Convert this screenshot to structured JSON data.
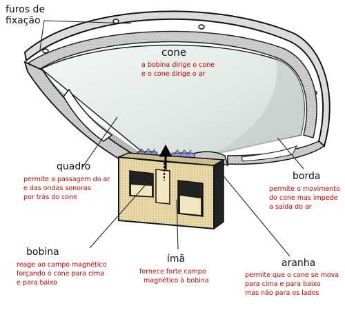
{
  "labels": {
    "furos": [
      "furos de",
      "fixação"
    ],
    "cone": "cone",
    "quadro": "quadro",
    "borda": "borda",
    "bobina": "bobina",
    "ima": "ímã",
    "aranha": "aranha"
  },
  "descriptions": {
    "cone": [
      "a bobina dirige o cone",
      "e o cone dirige o ar"
    ],
    "quadro": [
      "permite a passagem do ar",
      "e das ondas sonoras",
      "por trás do cone"
    ],
    "borda": [
      "permite o movimento",
      "do cone mas impede",
      "a saída do ar"
    ],
    "bobina": [
      "reage ao campo magnético",
      "forçando o cone para cima",
      "e para baixo"
    ],
    "ima": [
      "fornece forte campo",
      "magnético à bobina"
    ],
    "aranha": [
      "permite que o cone se mova",
      "para cima e para baixo",
      "mas não para os lados"
    ]
  },
  "colors": {
    "label": "#111111",
    "description": "#c40000",
    "cone_fill": "#e4ece8",
    "frame": "#6e6e6e",
    "magnet": "#e8d9a6",
    "voice_coil": "#8f95e6"
  },
  "icons": [
    "up-down-arrow-icon"
  ]
}
